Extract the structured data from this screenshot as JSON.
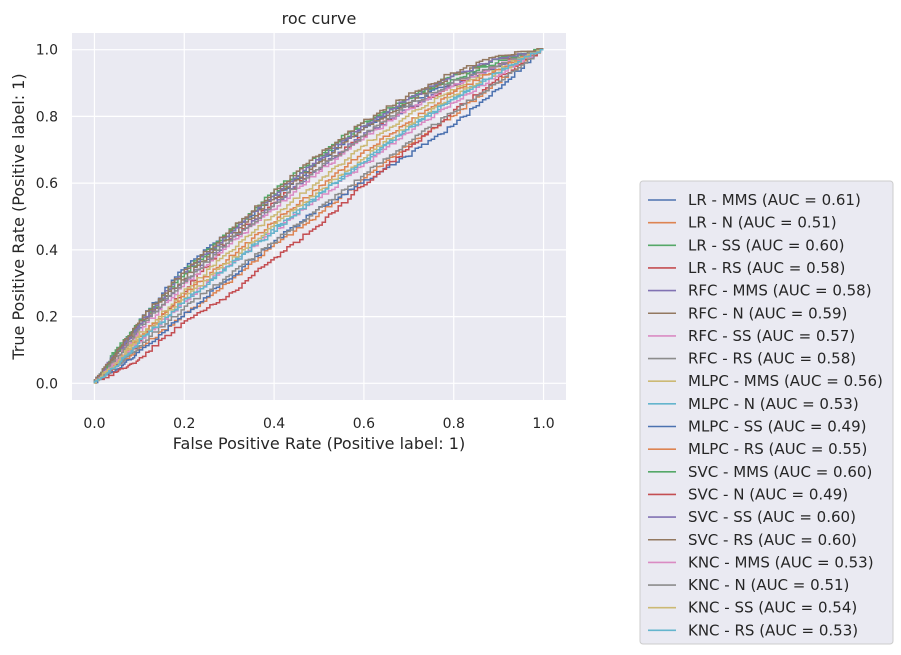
{
  "chart_data": {
    "type": "line",
    "title": "roc curve",
    "xlabel": "False Positive Rate (Positive label: 1)",
    "ylabel": "True Positive Rate (Positive label: 1)",
    "xlim": [
      -0.05,
      1.05
    ],
    "ylim": [
      -0.05,
      1.05
    ],
    "xticks": [
      "0.0",
      "0.2",
      "0.4",
      "0.6",
      "0.8",
      "1.0"
    ],
    "yticks": [
      "0.0",
      "0.2",
      "0.4",
      "0.6",
      "0.8",
      "1.0"
    ],
    "grid": true,
    "legend_position": "outside-lower-right",
    "series": [
      {
        "name": "LR - MMS (AUC = 0.61)",
        "color": "#4c72b0",
        "x": [
          0,
          0.05,
          0.1,
          0.2,
          0.3,
          0.4,
          0.5,
          0.6,
          0.7,
          0.8,
          0.9,
          1.0
        ],
        "y": [
          0,
          0.09,
          0.18,
          0.34,
          0.45,
          0.55,
          0.66,
          0.76,
          0.84,
          0.9,
          0.95,
          1.0
        ]
      },
      {
        "name": "LR - N (AUC = 0.51)",
        "color": "#dd8452",
        "x": [
          0,
          0.05,
          0.1,
          0.2,
          0.3,
          0.4,
          0.5,
          0.6,
          0.7,
          0.8,
          0.9,
          1.0
        ],
        "y": [
          0,
          0.05,
          0.1,
          0.2,
          0.3,
          0.41,
          0.5,
          0.61,
          0.71,
          0.8,
          0.9,
          1.0
        ]
      },
      {
        "name": "LR - SS (AUC = 0.60)",
        "color": "#55a868",
        "x": [
          0,
          0.05,
          0.1,
          0.2,
          0.3,
          0.4,
          0.5,
          0.6,
          0.7,
          0.8,
          0.9,
          1.0
        ],
        "y": [
          0,
          0.1,
          0.17,
          0.32,
          0.44,
          0.56,
          0.67,
          0.77,
          0.85,
          0.91,
          0.96,
          1.0
        ]
      },
      {
        "name": "LR - RS (AUC = 0.58)",
        "color": "#c44e52",
        "x": [
          0,
          0.05,
          0.1,
          0.2,
          0.3,
          0.4,
          0.5,
          0.6,
          0.7,
          0.8,
          0.9,
          1.0
        ],
        "y": [
          0,
          0.05,
          0.12,
          0.27,
          0.42,
          0.54,
          0.64,
          0.74,
          0.82,
          0.89,
          0.95,
          1.0
        ]
      },
      {
        "name": "RFC - MMS (AUC = 0.58)",
        "color": "#8172b3",
        "x": [
          0,
          0.05,
          0.1,
          0.2,
          0.3,
          0.4,
          0.5,
          0.6,
          0.7,
          0.8,
          0.9,
          1.0
        ],
        "y": [
          0,
          0.08,
          0.16,
          0.3,
          0.42,
          0.53,
          0.64,
          0.74,
          0.82,
          0.89,
          0.95,
          1.0
        ]
      },
      {
        "name": "RFC - N (AUC = 0.59)",
        "color": "#937860",
        "x": [
          0,
          0.05,
          0.1,
          0.2,
          0.3,
          0.4,
          0.5,
          0.6,
          0.7,
          0.8,
          0.9,
          1.0
        ],
        "y": [
          0,
          0.08,
          0.17,
          0.31,
          0.43,
          0.55,
          0.66,
          0.76,
          0.84,
          0.92,
          0.97,
          1.0
        ]
      },
      {
        "name": "RFC - SS (AUC = 0.57)",
        "color": "#da8bc3",
        "x": [
          0,
          0.05,
          0.1,
          0.2,
          0.3,
          0.4,
          0.5,
          0.6,
          0.7,
          0.8,
          0.9,
          1.0
        ],
        "y": [
          0,
          0.07,
          0.15,
          0.29,
          0.41,
          0.52,
          0.63,
          0.73,
          0.82,
          0.89,
          0.95,
          1.0
        ]
      },
      {
        "name": "RFC - RS (AUC = 0.58)",
        "color": "#8c8c8c",
        "x": [
          0,
          0.05,
          0.1,
          0.2,
          0.3,
          0.4,
          0.5,
          0.6,
          0.7,
          0.8,
          0.9,
          1.0
        ],
        "y": [
          0,
          0.07,
          0.16,
          0.3,
          0.42,
          0.53,
          0.64,
          0.74,
          0.83,
          0.9,
          0.95,
          1.0
        ]
      },
      {
        "name": "MLPC - MMS (AUC = 0.56)",
        "color": "#ccb974",
        "x": [
          0,
          0.05,
          0.1,
          0.2,
          0.3,
          0.4,
          0.5,
          0.6,
          0.7,
          0.8,
          0.9,
          1.0
        ],
        "y": [
          0,
          0.06,
          0.14,
          0.27,
          0.39,
          0.5,
          0.6,
          0.71,
          0.8,
          0.88,
          0.94,
          1.0
        ]
      },
      {
        "name": "MLPC - N (AUC = 0.53)",
        "color": "#64b5cd",
        "x": [
          0,
          0.05,
          0.1,
          0.2,
          0.3,
          0.4,
          0.5,
          0.6,
          0.7,
          0.8,
          0.9,
          1.0
        ],
        "y": [
          0,
          0.05,
          0.12,
          0.24,
          0.35,
          0.46,
          0.56,
          0.66,
          0.76,
          0.85,
          0.93,
          1.0
        ]
      },
      {
        "name": "MLPC - SS (AUC = 0.49)",
        "color": "#4c72b0",
        "x": [
          0,
          0.05,
          0.1,
          0.2,
          0.3,
          0.4,
          0.5,
          0.6,
          0.7,
          0.8,
          0.9,
          1.0
        ],
        "y": [
          0,
          0.04,
          0.09,
          0.2,
          0.31,
          0.42,
          0.52,
          0.6,
          0.68,
          0.77,
          0.88,
          1.0
        ]
      },
      {
        "name": "MLPC - RS (AUC = 0.55)",
        "color": "#dd8452",
        "x": [
          0,
          0.05,
          0.1,
          0.2,
          0.3,
          0.4,
          0.5,
          0.6,
          0.7,
          0.8,
          0.9,
          1.0
        ],
        "y": [
          0,
          0.06,
          0.13,
          0.26,
          0.37,
          0.48,
          0.58,
          0.69,
          0.78,
          0.87,
          0.94,
          1.0
        ]
      },
      {
        "name": "SVC - MMS (AUC = 0.60)",
        "color": "#55a868",
        "x": [
          0,
          0.05,
          0.1,
          0.2,
          0.3,
          0.4,
          0.5,
          0.6,
          0.7,
          0.8,
          0.9,
          1.0
        ],
        "y": [
          0,
          0.09,
          0.18,
          0.33,
          0.45,
          0.57,
          0.68,
          0.78,
          0.85,
          0.92,
          0.97,
          1.0
        ]
      },
      {
        "name": "SVC - N (AUC = 0.49)",
        "color": "#c44e52",
        "x": [
          0,
          0.05,
          0.1,
          0.2,
          0.3,
          0.4,
          0.5,
          0.6,
          0.7,
          0.8,
          0.9,
          1.0
        ],
        "y": [
          0,
          0.03,
          0.07,
          0.18,
          0.26,
          0.37,
          0.47,
          0.59,
          0.7,
          0.81,
          0.91,
          1.0
        ]
      },
      {
        "name": "SVC - SS (AUC = 0.60)",
        "color": "#8172b3",
        "x": [
          0,
          0.05,
          0.1,
          0.2,
          0.3,
          0.4,
          0.5,
          0.6,
          0.7,
          0.8,
          0.9,
          1.0
        ],
        "y": [
          0,
          0.09,
          0.17,
          0.33,
          0.44,
          0.56,
          0.67,
          0.77,
          0.85,
          0.92,
          0.97,
          1.0
        ]
      },
      {
        "name": "SVC - RS (AUC = 0.60)",
        "color": "#937860",
        "x": [
          0,
          0.05,
          0.1,
          0.2,
          0.3,
          0.4,
          0.5,
          0.6,
          0.7,
          0.8,
          0.9,
          1.0
        ],
        "y": [
          0,
          0.09,
          0.18,
          0.33,
          0.45,
          0.57,
          0.68,
          0.78,
          0.86,
          0.93,
          0.98,
          1.0
        ]
      },
      {
        "name": "KNC - MMS (AUC = 0.53)",
        "color": "#da8bc3",
        "x": [
          0,
          0.05,
          0.1,
          0.2,
          0.3,
          0.4,
          0.5,
          0.6,
          0.7,
          0.8,
          0.9,
          1.0
        ],
        "y": [
          0,
          0.06,
          0.12,
          0.24,
          0.35,
          0.45,
          0.55,
          0.65,
          0.75,
          0.84,
          0.92,
          1.0
        ]
      },
      {
        "name": "KNC - N (AUC = 0.51)",
        "color": "#8c8c8c",
        "x": [
          0,
          0.05,
          0.1,
          0.2,
          0.3,
          0.4,
          0.5,
          0.6,
          0.7,
          0.8,
          0.9,
          1.0
        ],
        "y": [
          0,
          0.05,
          0.11,
          0.22,
          0.32,
          0.42,
          0.52,
          0.62,
          0.72,
          0.81,
          0.9,
          1.0
        ]
      },
      {
        "name": "KNC - SS (AUC = 0.54)",
        "color": "#ccb974",
        "x": [
          0,
          0.05,
          0.1,
          0.2,
          0.3,
          0.4,
          0.5,
          0.6,
          0.7,
          0.8,
          0.9,
          1.0
        ],
        "y": [
          0,
          0.06,
          0.13,
          0.25,
          0.36,
          0.47,
          0.57,
          0.67,
          0.77,
          0.86,
          0.93,
          1.0
        ]
      },
      {
        "name": "KNC - RS (AUC = 0.53)",
        "color": "#64b5cd",
        "x": [
          0,
          0.05,
          0.1,
          0.2,
          0.3,
          0.4,
          0.5,
          0.6,
          0.7,
          0.8,
          0.9,
          1.0
        ],
        "y": [
          0,
          0.05,
          0.12,
          0.24,
          0.35,
          0.45,
          0.56,
          0.66,
          0.76,
          0.85,
          0.93,
          1.0
        ]
      }
    ]
  }
}
